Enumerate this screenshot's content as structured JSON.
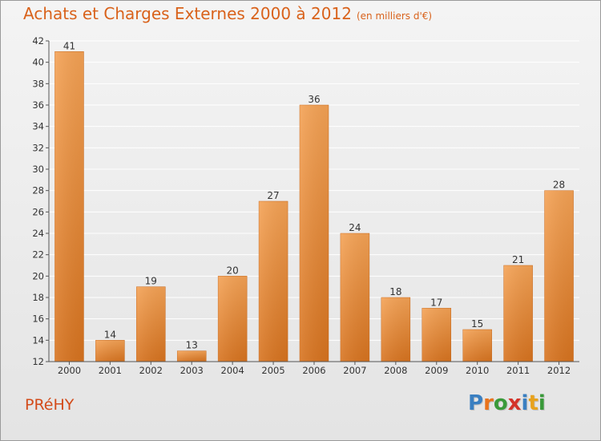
{
  "title": "Achats et Charges Externes 2000 à 2012",
  "subtitle": "(en milliers d'€)",
  "commune": "PRéHY",
  "logo": {
    "letters": [
      "P",
      "r",
      "o",
      "x",
      "i",
      "t",
      "i"
    ],
    "colors": [
      "#3a7fc1",
      "#e8731c",
      "#3a9a3a",
      "#d4332a",
      "#3a7fc1",
      "#e8a21c",
      "#3a9a3a"
    ]
  },
  "colors": {
    "bar_top": "#f4a255",
    "bar_bottom": "#d7731f",
    "title": "#d9621b",
    "grid": "#ffffff"
  },
  "chart_data": {
    "type": "bar",
    "title": "Achats et Charges Externes 2000 à 2012",
    "subtitle": "(en milliers d'€)",
    "categories": [
      "2000",
      "2001",
      "2002",
      "2003",
      "2004",
      "2005",
      "2006",
      "2007",
      "2008",
      "2009",
      "2010",
      "2011",
      "2012"
    ],
    "values": [
      41,
      14,
      19,
      13,
      20,
      27,
      36,
      24,
      18,
      17,
      15,
      21,
      28
    ],
    "ylim": [
      12,
      42
    ],
    "yticks": [
      12,
      14,
      16,
      18,
      20,
      22,
      24,
      26,
      28,
      30,
      32,
      34,
      36,
      38,
      40,
      42
    ],
    "grid": true,
    "xlabel": "",
    "ylabel": ""
  }
}
